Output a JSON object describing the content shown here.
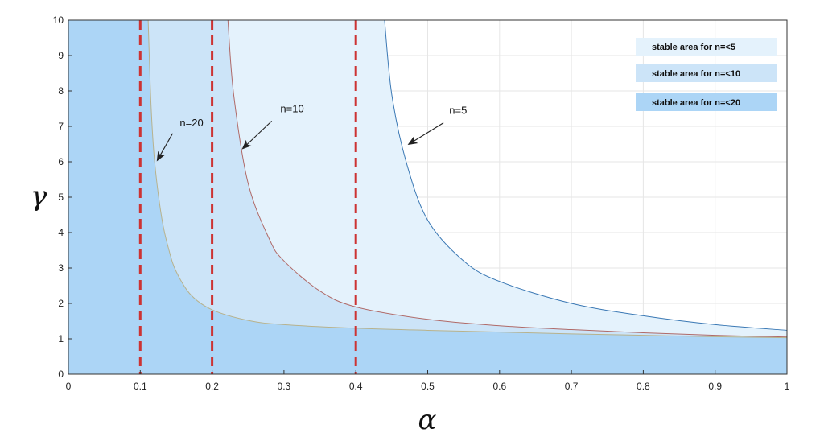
{
  "chart_data": {
    "type": "area",
    "title": "",
    "xlabel": "α",
    "ylabel": "γ",
    "xlim": [
      0,
      1
    ],
    "ylim": [
      0,
      10
    ],
    "x_ticks": [
      "0",
      "0.1",
      "0.2",
      "0.3",
      "0.4",
      "0.5",
      "0.6",
      "0.7",
      "0.8",
      "0.9",
      "1"
    ],
    "y_ticks": [
      "0",
      "1",
      "2",
      "3",
      "4",
      "5",
      "6",
      "7",
      "8",
      "9",
      "10"
    ],
    "grid": true,
    "legend_position": "top-right",
    "series": [
      {
        "name": "stable area for n=<5",
        "curve_label": "n=5",
        "fill_color": "#e4f2fc",
        "line_color": "#3a78b4",
        "x": [
          0.44,
          0.45,
          0.47,
          0.5,
          0.55,
          0.6,
          0.7,
          0.8,
          0.9,
          1.0
        ],
        "y": [
          10,
          7.9,
          6.0,
          4.35,
          3.2,
          2.62,
          2.0,
          1.65,
          1.4,
          1.24
        ]
      },
      {
        "name": "stable area for n=<10",
        "curve_label": "n=10",
        "fill_color": "#cce4f8",
        "line_color": "#b06a68",
        "x": [
          0.222,
          0.23,
          0.25,
          0.28,
          0.3,
          0.35,
          0.4,
          0.5,
          0.6,
          0.7,
          0.8,
          0.9,
          1.0
        ],
        "y": [
          10,
          7.9,
          5.4,
          3.8,
          3.2,
          2.35,
          1.9,
          1.55,
          1.37,
          1.26,
          1.17,
          1.1,
          1.05
        ]
      },
      {
        "name": "stable area for n=<20",
        "curve_label": "n=20",
        "fill_color": "#acd5f6",
        "line_color": "#b8b28c",
        "x": [
          0.111,
          0.115,
          0.12,
          0.13,
          0.14,
          0.15,
          0.17,
          0.2,
          0.25,
          0.3,
          0.4,
          0.5,
          0.6,
          0.7,
          0.8,
          0.9,
          1.0
        ],
        "y": [
          10,
          7.6,
          6.0,
          4.4,
          3.5,
          2.9,
          2.25,
          1.82,
          1.52,
          1.4,
          1.3,
          1.24,
          1.19,
          1.14,
          1.1,
          1.06,
          1.03
        ]
      }
    ],
    "vertical_lines": [
      {
        "x": 0.1,
        "color": "#cc3333",
        "style": "dashed"
      },
      {
        "x": 0.2,
        "color": "#cc3333",
        "style": "dashed"
      },
      {
        "x": 0.4,
        "color": "#cc3333",
        "style": "dashed"
      }
    ],
    "annotations": [
      {
        "text": "n=20",
        "text_x": 0.155,
        "text_y": 7.0,
        "arrow_from": [
          0.145,
          6.8
        ],
        "arrow_to": [
          0.124,
          6.05
        ]
      },
      {
        "text": "n=10",
        "text_x": 0.295,
        "text_y": 7.4,
        "arrow_from": [
          0.283,
          7.15
        ],
        "arrow_to": [
          0.243,
          6.38
        ]
      },
      {
        "text": "n=5",
        "text_x": 0.53,
        "text_y": 7.35,
        "arrow_from": [
          0.522,
          7.1
        ],
        "arrow_to": [
          0.474,
          6.5
        ]
      }
    ]
  }
}
